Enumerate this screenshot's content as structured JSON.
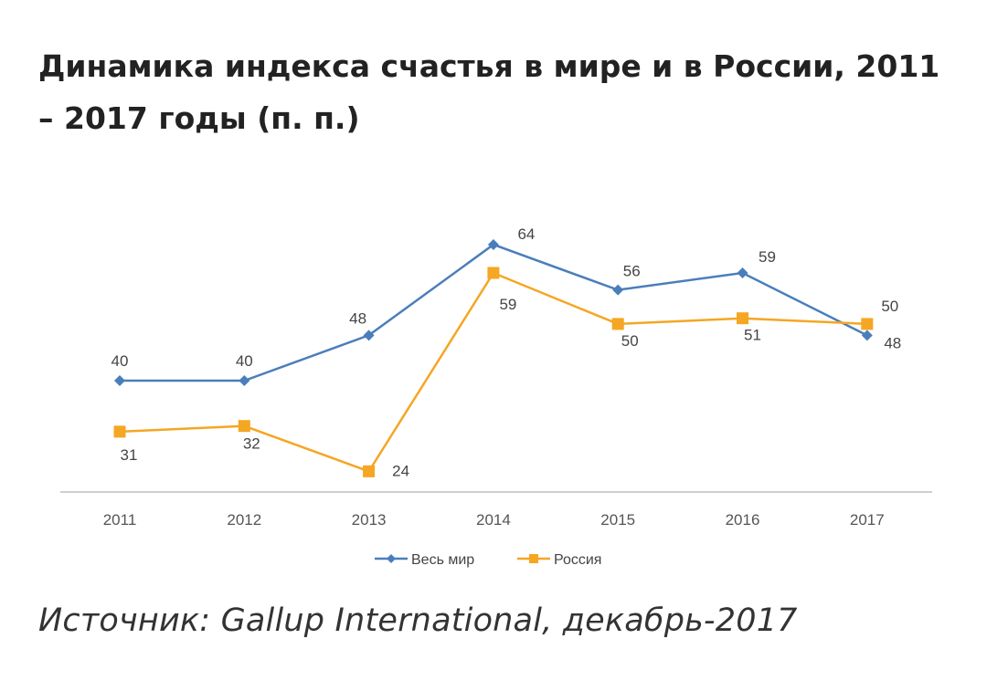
{
  "page": {
    "title": "Динамика индекса счастья в мире и в России, 2011 – 2017 годы (п. п.)",
    "source": "Источник: Gallup International, декабрь-2017"
  },
  "chart_data": {
    "type": "line",
    "title": "",
    "xlabel": "",
    "ylabel": "",
    "categories": [
      "2011",
      "2012",
      "2013",
      "2014",
      "2015",
      "2016",
      "2017"
    ],
    "series": [
      {
        "name": "Весь мир",
        "values": [
          40,
          40,
          48,
          64,
          56,
          59,
          48
        ],
        "color": "#4a7ebb",
        "marker": "diamond"
      },
      {
        "name": "Россия",
        "values": [
          31,
          32,
          24,
          59,
          50,
          51,
          50
        ],
        "color": "#f5a623",
        "marker": "square"
      }
    ],
    "data_labels": true,
    "legend_position": "bottom",
    "grid": false
  }
}
